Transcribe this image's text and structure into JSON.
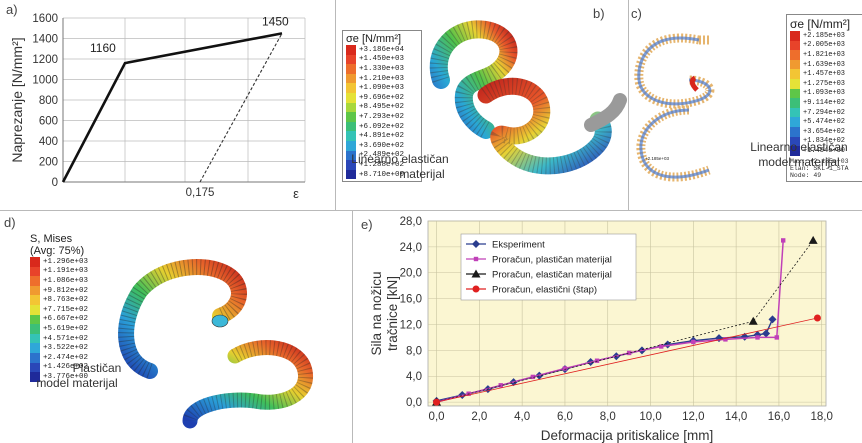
{
  "panel_a": {
    "label": "a)",
    "ylabel": "Naprezanje [N/mm²]",
    "xlabel": "ε",
    "yticks": [
      "0",
      "200",
      "400",
      "600",
      "800",
      "1000",
      "1200",
      "1400",
      "1600"
    ],
    "xtick": "0,175",
    "annotations": [
      "1160",
      "1450"
    ]
  },
  "panel_b": {
    "label": "b)",
    "legend_title": "σe [N/mm²]",
    "legend_values": [
      "+3.186e+04",
      "+1.450e+03",
      "+1.330e+03",
      "+1.210e+03",
      "+1.090e+03",
      "+9.696e+02",
      "+8.495e+02",
      "+7.293e+02",
      "+6.092e+02",
      "+4.891e+02",
      "+3.690e+02",
      "+2.489e+02",
      "+1.288e+02",
      "+8.710e+00"
    ],
    "caption_line1": "Linearno elastičan",
    "caption_line2": "materijal"
  },
  "panel_c": {
    "label": "c)",
    "legend_title": "σe [N/mm²]",
    "legend_values": [
      "+2.185e+03",
      "+2.005e+03",
      "+1.821e+03",
      "+1.639e+03",
      "+1.457e+03",
      "+1.275e+03",
      "+1.093e+03",
      "+9.114e+02",
      "+7.294e+02",
      "+5.474e+02",
      "+3.654e+02",
      "+1.834e+02",
      "+1.454e+00"
    ],
    "max_text": "Max: +2.185e+03",
    "elem_text": "Elan: SKL-1_STA",
    "node_text": "Node: 49",
    "small_marker": "+2.185e+03",
    "caption_line1": "Linearno elastičan",
    "caption_line2": "model materijal"
  },
  "panel_d": {
    "label": "d)",
    "legend_title1": "S, Mises",
    "legend_title2": "(Avg: 75%)",
    "legend_values": [
      "+1.296e+03",
      "+1.191e+03",
      "+1.086e+03",
      "+9.812e+02",
      "+8.763e+02",
      "+7.715e+02",
      "+6.667e+02",
      "+5.619e+02",
      "+4.571e+02",
      "+3.522e+02",
      "+2.474e+02",
      "+1.426e+02",
      "+3.776e+00"
    ],
    "caption_line1": "Plastičan",
    "caption_line2": "model materijal"
  },
  "panel_e": {
    "label": "e)"
  },
  "colors": {
    "eksperiment": "#2a3d8f",
    "plasticni": "#c040b8",
    "elasticni": "#1a1a1a",
    "stap": "#e02020",
    "plot_bg": "#fbf6d2"
  },
  "chart_data": [
    {
      "type": "line",
      "panel": "a",
      "xlabel": "ε",
      "ylabel": "Naprezanje [N/mm²]",
      "ylim": [
        0,
        1600
      ],
      "x_ticks": [
        "0,175"
      ],
      "series": [
        {
          "values": [
            [
              0,
              0
            ],
            [
              0.0058,
              1160
            ],
            [
              0.06,
              1450
            ]
          ]
        },
        {
          "values": [
            [
              0.175,
              0
            ],
            [
              0.1822,
              1450
            ]
          ]
        }
      ],
      "annotations": [
        "1160",
        "1450"
      ]
    },
    {
      "type": "line",
      "panel": "e",
      "xlabel": "Deformacija pritiskalice [mm]",
      "ylabel_line1": "Sila na nožicu",
      "ylabel_line2": "tračnice [kN]",
      "xlim": [
        -0.4,
        18.2
      ],
      "ylim": [
        -0.6,
        28.0
      ],
      "x_ticks": [
        "0,0",
        "2,0",
        "4,0",
        "6,0",
        "8,0",
        "10,0",
        "12,0",
        "14,0",
        "16,0",
        "18,0"
      ],
      "y_ticks": [
        "0,0",
        "4,0",
        "8,0",
        "12,0",
        "16,0",
        "20,0",
        "24,0",
        "28,0"
      ],
      "grid": true,
      "legend": "top-left",
      "series": [
        {
          "name": "Eksperiment",
          "marker": "diamond",
          "x": [
            0.0,
            1.2,
            2.4,
            3.6,
            4.8,
            6.0,
            7.2,
            8.4,
            9.6,
            10.8,
            12.0,
            13.2,
            14.4,
            15.0,
            15.4,
            15.7
          ],
          "y": [
            0.2,
            1.1,
            2.0,
            3.1,
            4.1,
            5.1,
            6.2,
            7.1,
            8.0,
            8.9,
            9.5,
            9.9,
            10.1,
            10.4,
            10.6,
            12.8
          ]
        },
        {
          "name": "Proračun, plastičan materijal",
          "marker": "square",
          "x": [
            0.0,
            1.5,
            3.0,
            4.5,
            6.0,
            7.5,
            9.0,
            10.5,
            12.0,
            13.5,
            15.0,
            15.9,
            16.2
          ],
          "y": [
            0.0,
            1.3,
            2.6,
            3.9,
            5.2,
            6.4,
            7.6,
            8.6,
            9.3,
            9.7,
            10.0,
            10.0,
            25.0
          ]
        },
        {
          "name": "Proračun, elastičan materijal",
          "marker": "triangle",
          "x": [
            0.0,
            14.8,
            17.6
          ],
          "y": [
            0.0,
            12.5,
            25.0
          ]
        },
        {
          "name": "Proračun, elastični (štap)",
          "marker": "circle",
          "x": [
            0.0,
            17.8
          ],
          "y": [
            0.0,
            13.0
          ]
        }
      ]
    }
  ]
}
